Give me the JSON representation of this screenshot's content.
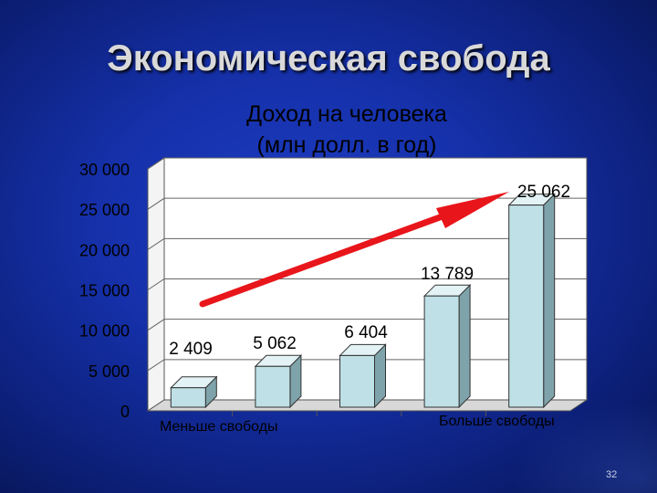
{
  "slide": {
    "title": "Экономическая свобода",
    "slide_number": "32"
  },
  "chart_data": {
    "type": "bar",
    "title_lines": [
      "Доход на человека",
      "(млн долл. в год)"
    ],
    "categories": [
      "",
      "",
      "",
      "",
      ""
    ],
    "values": [
      2409,
      5062,
      6404,
      13789,
      25062
    ],
    "value_labels": [
      "2 409",
      "5 062",
      "6 404",
      "13 789",
      "25 062"
    ],
    "ylim": [
      0,
      30000
    ],
    "yticks": [
      0,
      5000,
      10000,
      15000,
      20000,
      25000,
      30000
    ],
    "ytick_labels": [
      "0",
      "5 000",
      "10 000",
      "15 000",
      "20 000",
      "25 000",
      "30 000"
    ],
    "xlabel_left": "Меньше свободы",
    "xlabel_right": "Больше свободы",
    "grid": true,
    "bar_color": "#bfe0e6",
    "arrow_color": "#e8161b",
    "plot_background": "#ffffff",
    "background": "#1530a8"
  }
}
